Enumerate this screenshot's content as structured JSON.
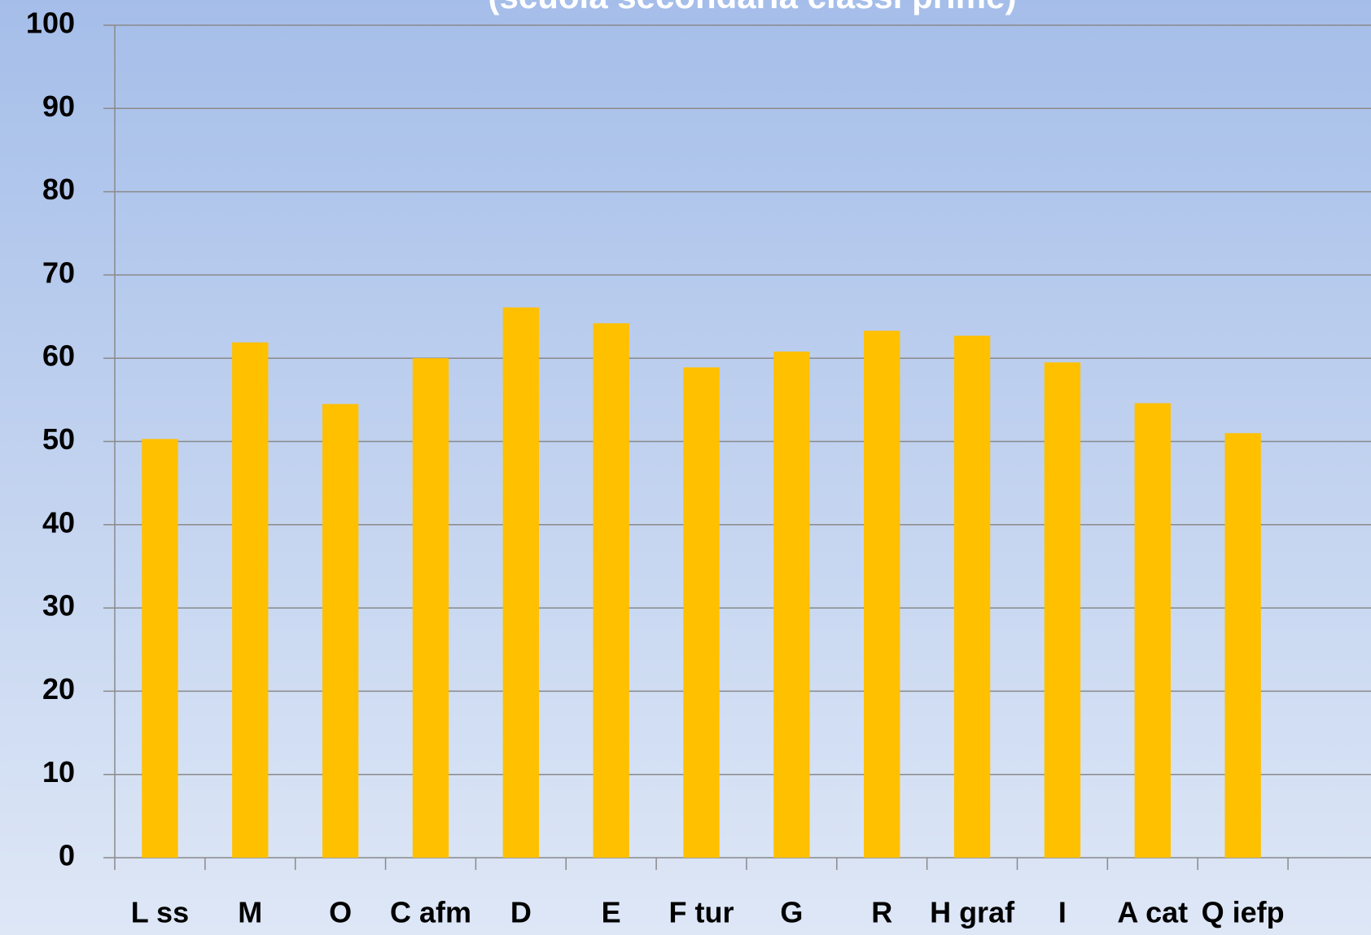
{
  "chart_data": {
    "type": "bar",
    "title": "(scuola secondaria classi prime)",
    "categories": [
      "L ss",
      "M",
      "O",
      "C afm",
      "D",
      "E",
      "F tur",
      "G",
      "R",
      "H graf",
      "I",
      "A cat",
      "Q iefp"
    ],
    "values": [
      50.3,
      61.9,
      54.5,
      60,
      66.1,
      64.2,
      58.9,
      60.8,
      63.3,
      62.7,
      59.5,
      54.6,
      51
    ],
    "color": "#ffc000",
    "ylim": [
      0,
      100
    ],
    "yticks": [
      0,
      10,
      20,
      30,
      40,
      50,
      60,
      70,
      80,
      90,
      100
    ],
    "grid": true
  }
}
